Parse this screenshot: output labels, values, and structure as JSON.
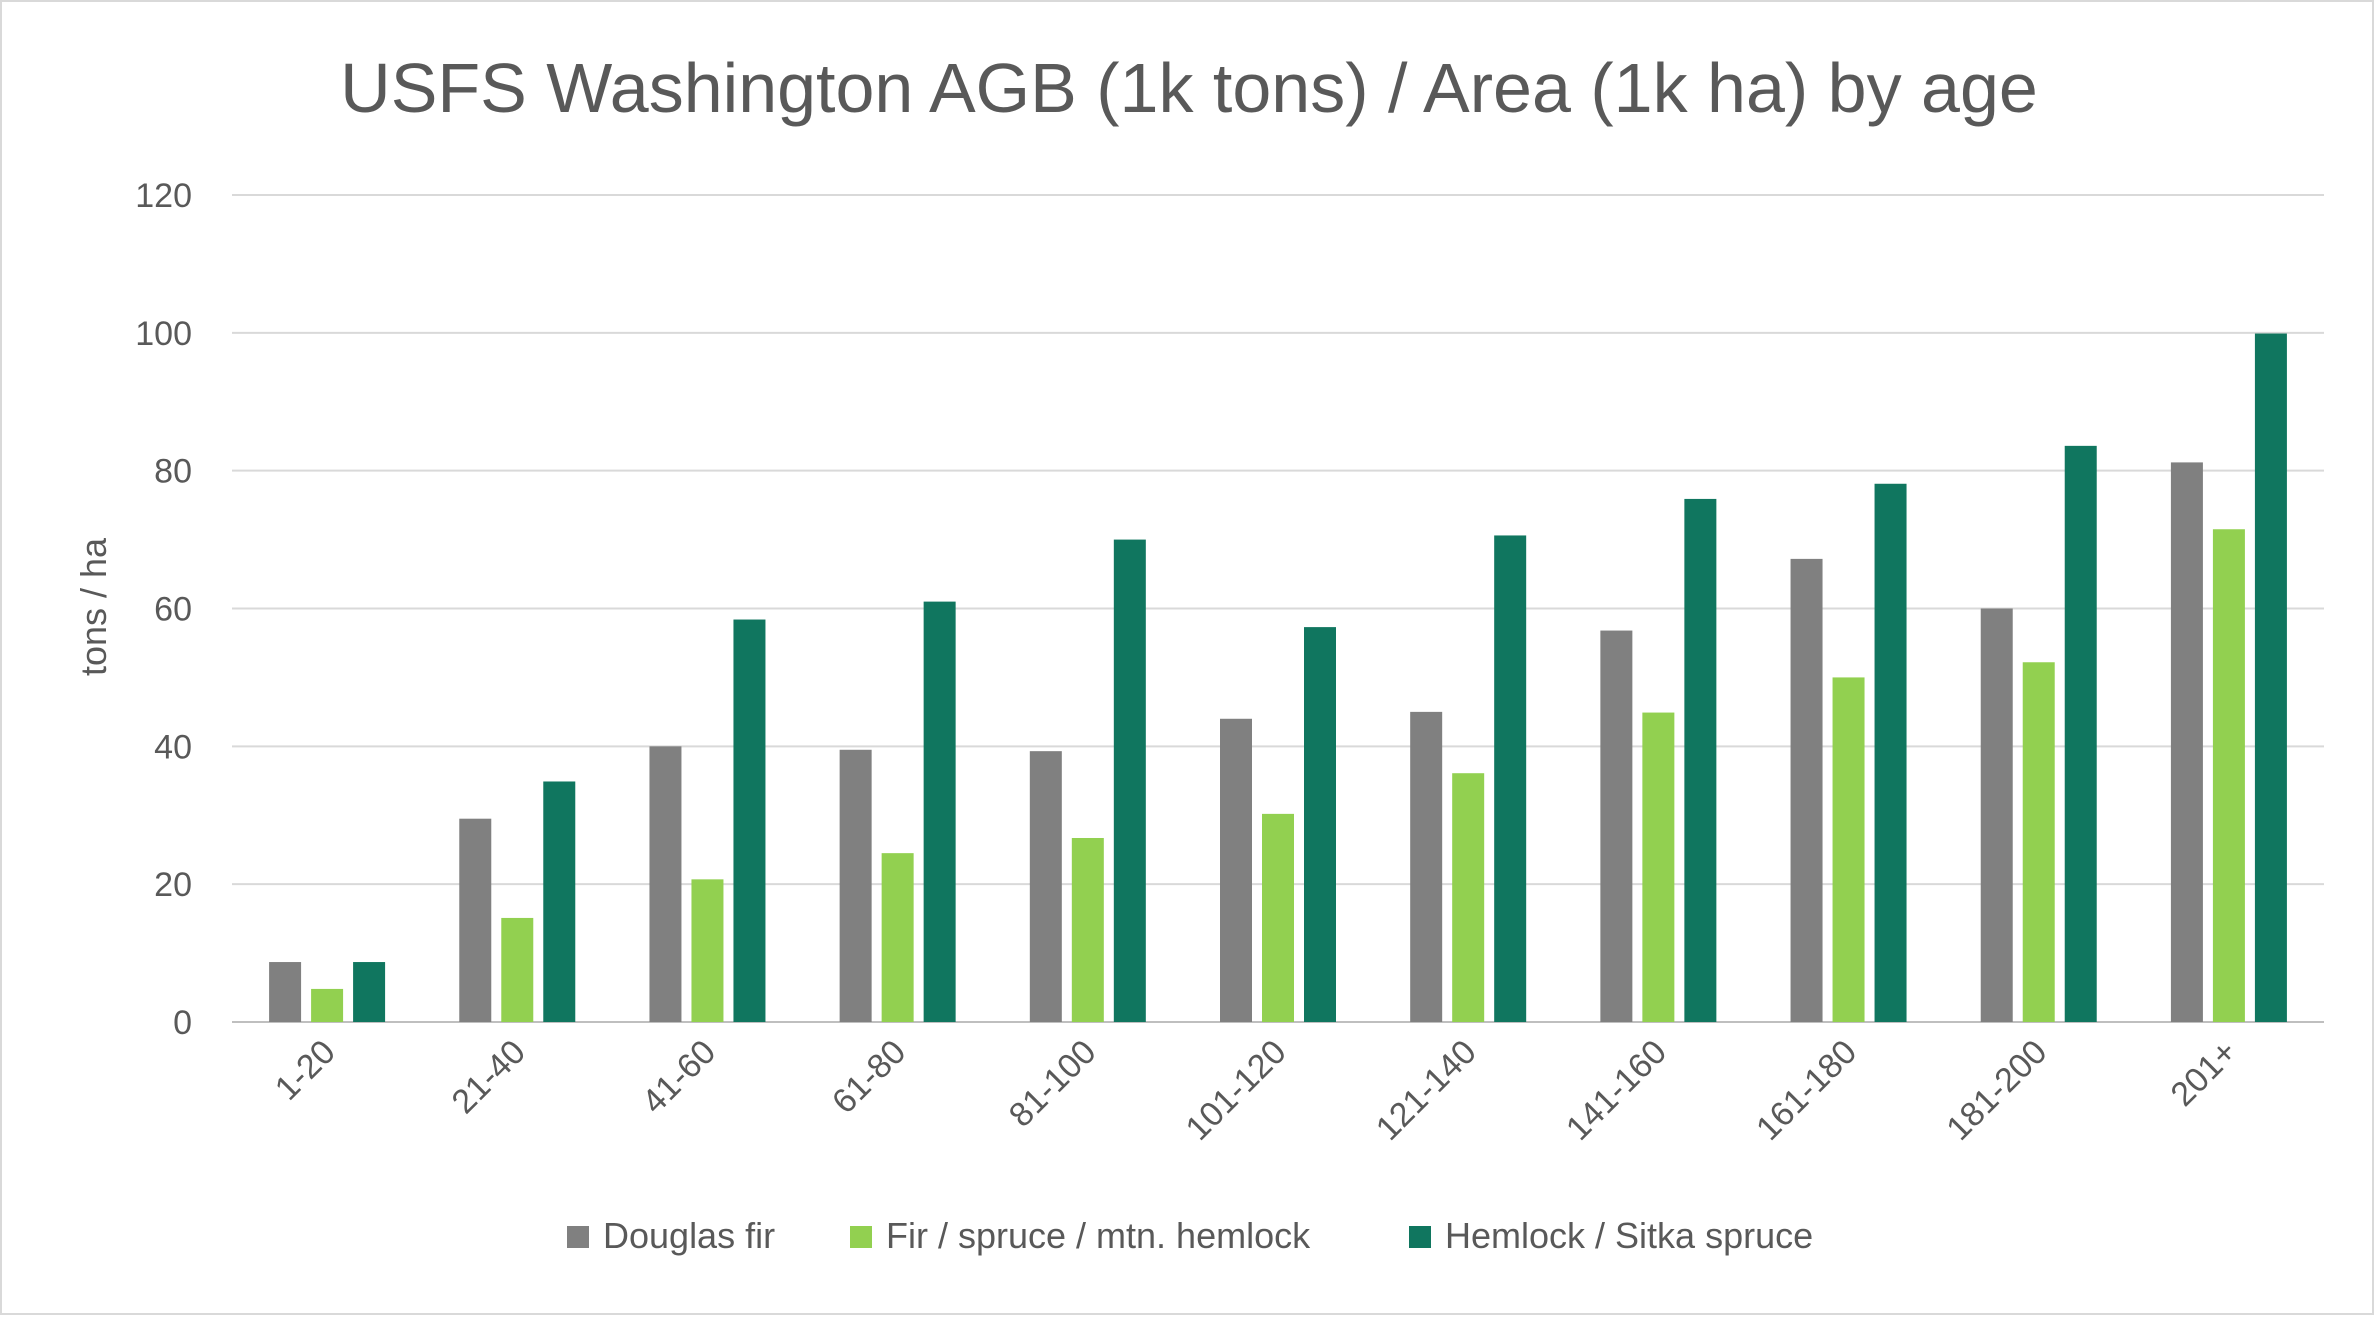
{
  "chart_data": {
    "type": "bar",
    "title": "USFS Washington AGB (1k tons) / Area (1k ha) by age",
    "xlabel": "",
    "ylabel": "tons / ha",
    "ylim": [
      0,
      120
    ],
    "yticks": [
      "0",
      "20",
      "40",
      "60",
      "80",
      "100",
      "120"
    ],
    "grid": "horizontal",
    "legend_position": "bottom",
    "categories": [
      "1-20",
      "21-40",
      "41-60",
      "61-80",
      "81-100",
      "101-120",
      "121-140",
      "141-160",
      "161-180",
      "181-200",
      "201+"
    ],
    "series": [
      {
        "name": "Douglas fir",
        "color": "#808080",
        "values": [
          8.7,
          29.5,
          40.0,
          39.5,
          39.3,
          44.0,
          45.0,
          56.8,
          67.2,
          60.0,
          81.2
        ]
      },
      {
        "name": "Fir / spruce / mtn. hemlock",
        "color": "#92d050",
        "values": [
          4.8,
          15.1,
          20.7,
          24.5,
          26.7,
          30.2,
          36.1,
          44.9,
          50.0,
          52.2,
          71.5
        ]
      },
      {
        "name": "Hemlock / Sitka spruce",
        "color": "#10765f",
        "values": [
          8.7,
          34.9,
          58.4,
          61.0,
          70.0,
          57.3,
          70.6,
          75.9,
          78.1,
          83.6,
          99.9
        ]
      }
    ]
  }
}
